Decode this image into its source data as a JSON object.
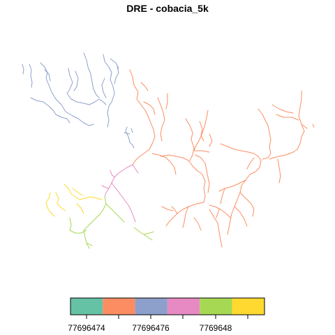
{
  "map": {
    "title": "DRE - cobacia_5k"
  },
  "legend": {
    "entries": [
      {
        "color": "#66C2A5"
      },
      {
        "color": "#FC8D62"
      },
      {
        "color": "#8DA0CB"
      },
      {
        "color": "#E78AC3"
      },
      {
        "color": "#A6D854"
      },
      {
        "color": "#FFD92F"
      }
    ],
    "tick_labels": [
      "77696474",
      "77696476",
      "7769648"
    ]
  },
  "colors": {
    "river_blue": "#8DA0CB",
    "river_orange": "#FC8D62",
    "river_pink": "#E78AC3",
    "river_green": "#A6D854",
    "river_yellow": "#FFD92F"
  }
}
